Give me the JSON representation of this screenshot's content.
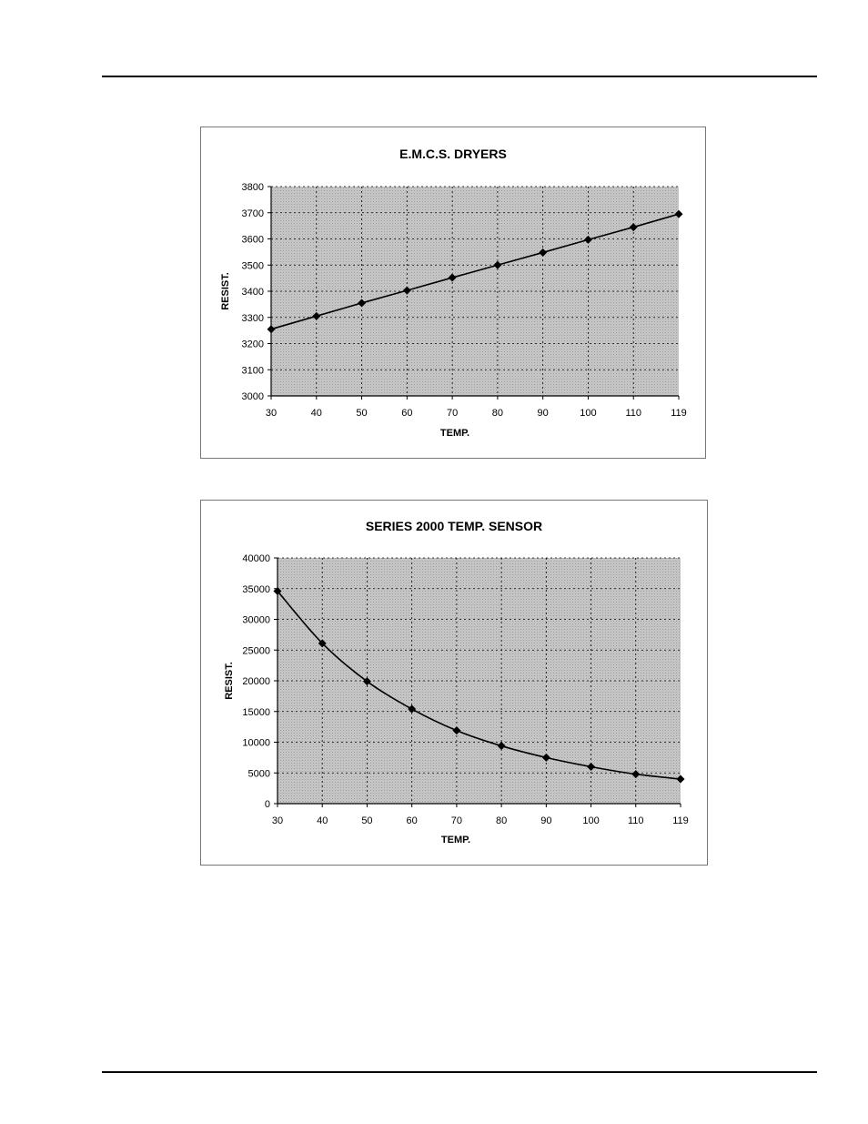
{
  "chart_data": [
    {
      "type": "line",
      "title": "E.M.C.S. DRYERS",
      "xlabel": "TEMP.",
      "ylabel": "RESIST.",
      "categories": [
        "30",
        "40",
        "50",
        "60",
        "70",
        "80",
        "90",
        "100",
        "110",
        "119"
      ],
      "series": [
        {
          "values": [
            3255,
            3305,
            3355,
            3403,
            3452,
            3500,
            3548,
            3597,
            3645,
            3695
          ]
        }
      ],
      "ylim": [
        3000,
        3800
      ],
      "yticks": [
        "3000",
        "3100",
        "3200",
        "3300",
        "3400",
        "3500",
        "3600",
        "3700",
        "3800"
      ],
      "grid": true,
      "marker": "diamond",
      "colors": {
        "line": "#000000",
        "plot_background": "#c8c8c8",
        "grid": "#000000"
      }
    },
    {
      "type": "line",
      "title": "SERIES 2000 TEMP. SENSOR",
      "xlabel": "TEMP.",
      "ylabel": "RESIST.",
      "categories": [
        "30",
        "40",
        "50",
        "60",
        "70",
        "80",
        "90",
        "100",
        "110",
        "119"
      ],
      "series": [
        {
          "values": [
            34600,
            26100,
            19900,
            15400,
            11900,
            9400,
            7500,
            6000,
            4800,
            4000
          ]
        }
      ],
      "ylim": [
        0,
        40000
      ],
      "yticks": [
        "0",
        "5000",
        "10000",
        "15000",
        "20000",
        "25000",
        "30000",
        "35000",
        "40000"
      ],
      "grid": true,
      "marker": "diamond",
      "colors": {
        "line": "#000000",
        "plot_background": "#c8c8c8",
        "grid": "#000000"
      }
    }
  ]
}
